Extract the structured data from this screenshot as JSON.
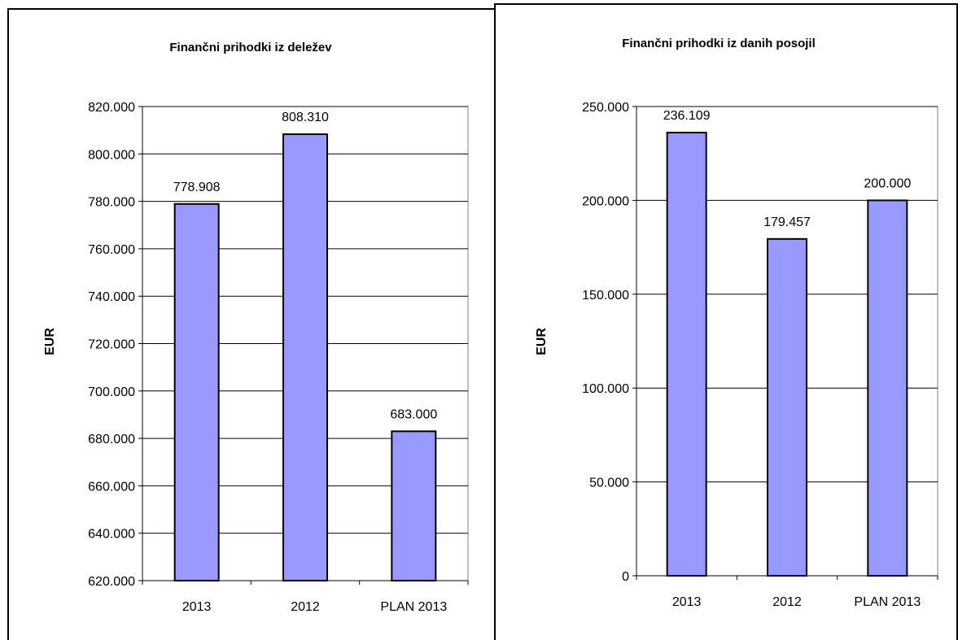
{
  "chart_data": [
    {
      "type": "bar",
      "title": "Finančni prihodki iz deležev",
      "ylabel": "EUR",
      "xlabel": "",
      "categories": [
        "2013",
        "2012",
        "PLAN 2013"
      ],
      "values": [
        778908,
        808310,
        683000
      ],
      "value_labels": [
        "778.908",
        "808.310",
        "683.000"
      ],
      "ylim": [
        620000,
        820000
      ],
      "yticks": [
        620000,
        640000,
        660000,
        680000,
        700000,
        720000,
        740000,
        760000,
        780000,
        800000,
        820000
      ],
      "ytick_labels": [
        "620.000",
        "640.000",
        "660.000",
        "680.000",
        "700.000",
        "720.000",
        "740.000",
        "760.000",
        "780.000",
        "800.000",
        "820.000"
      ],
      "grid": true,
      "legend": "none",
      "bar_color": "#9999ff"
    },
    {
      "type": "bar",
      "title": "Finančni prihodki iz danih posojil",
      "ylabel": "EUR",
      "xlabel": "",
      "categories": [
        "2013",
        "2012",
        "PLAN 2013"
      ],
      "values": [
        236109,
        179457,
        200000
      ],
      "value_labels": [
        "236.109",
        "179.457",
        "200.000"
      ],
      "ylim": [
        0,
        250000
      ],
      "yticks": [
        0,
        50000,
        100000,
        150000,
        200000,
        250000
      ],
      "ytick_labels": [
        "0",
        "50.000",
        "100.000",
        "150.000",
        "200.000",
        "250.000"
      ],
      "grid": true,
      "legend": "none",
      "bar_color": "#9999ff"
    }
  ]
}
